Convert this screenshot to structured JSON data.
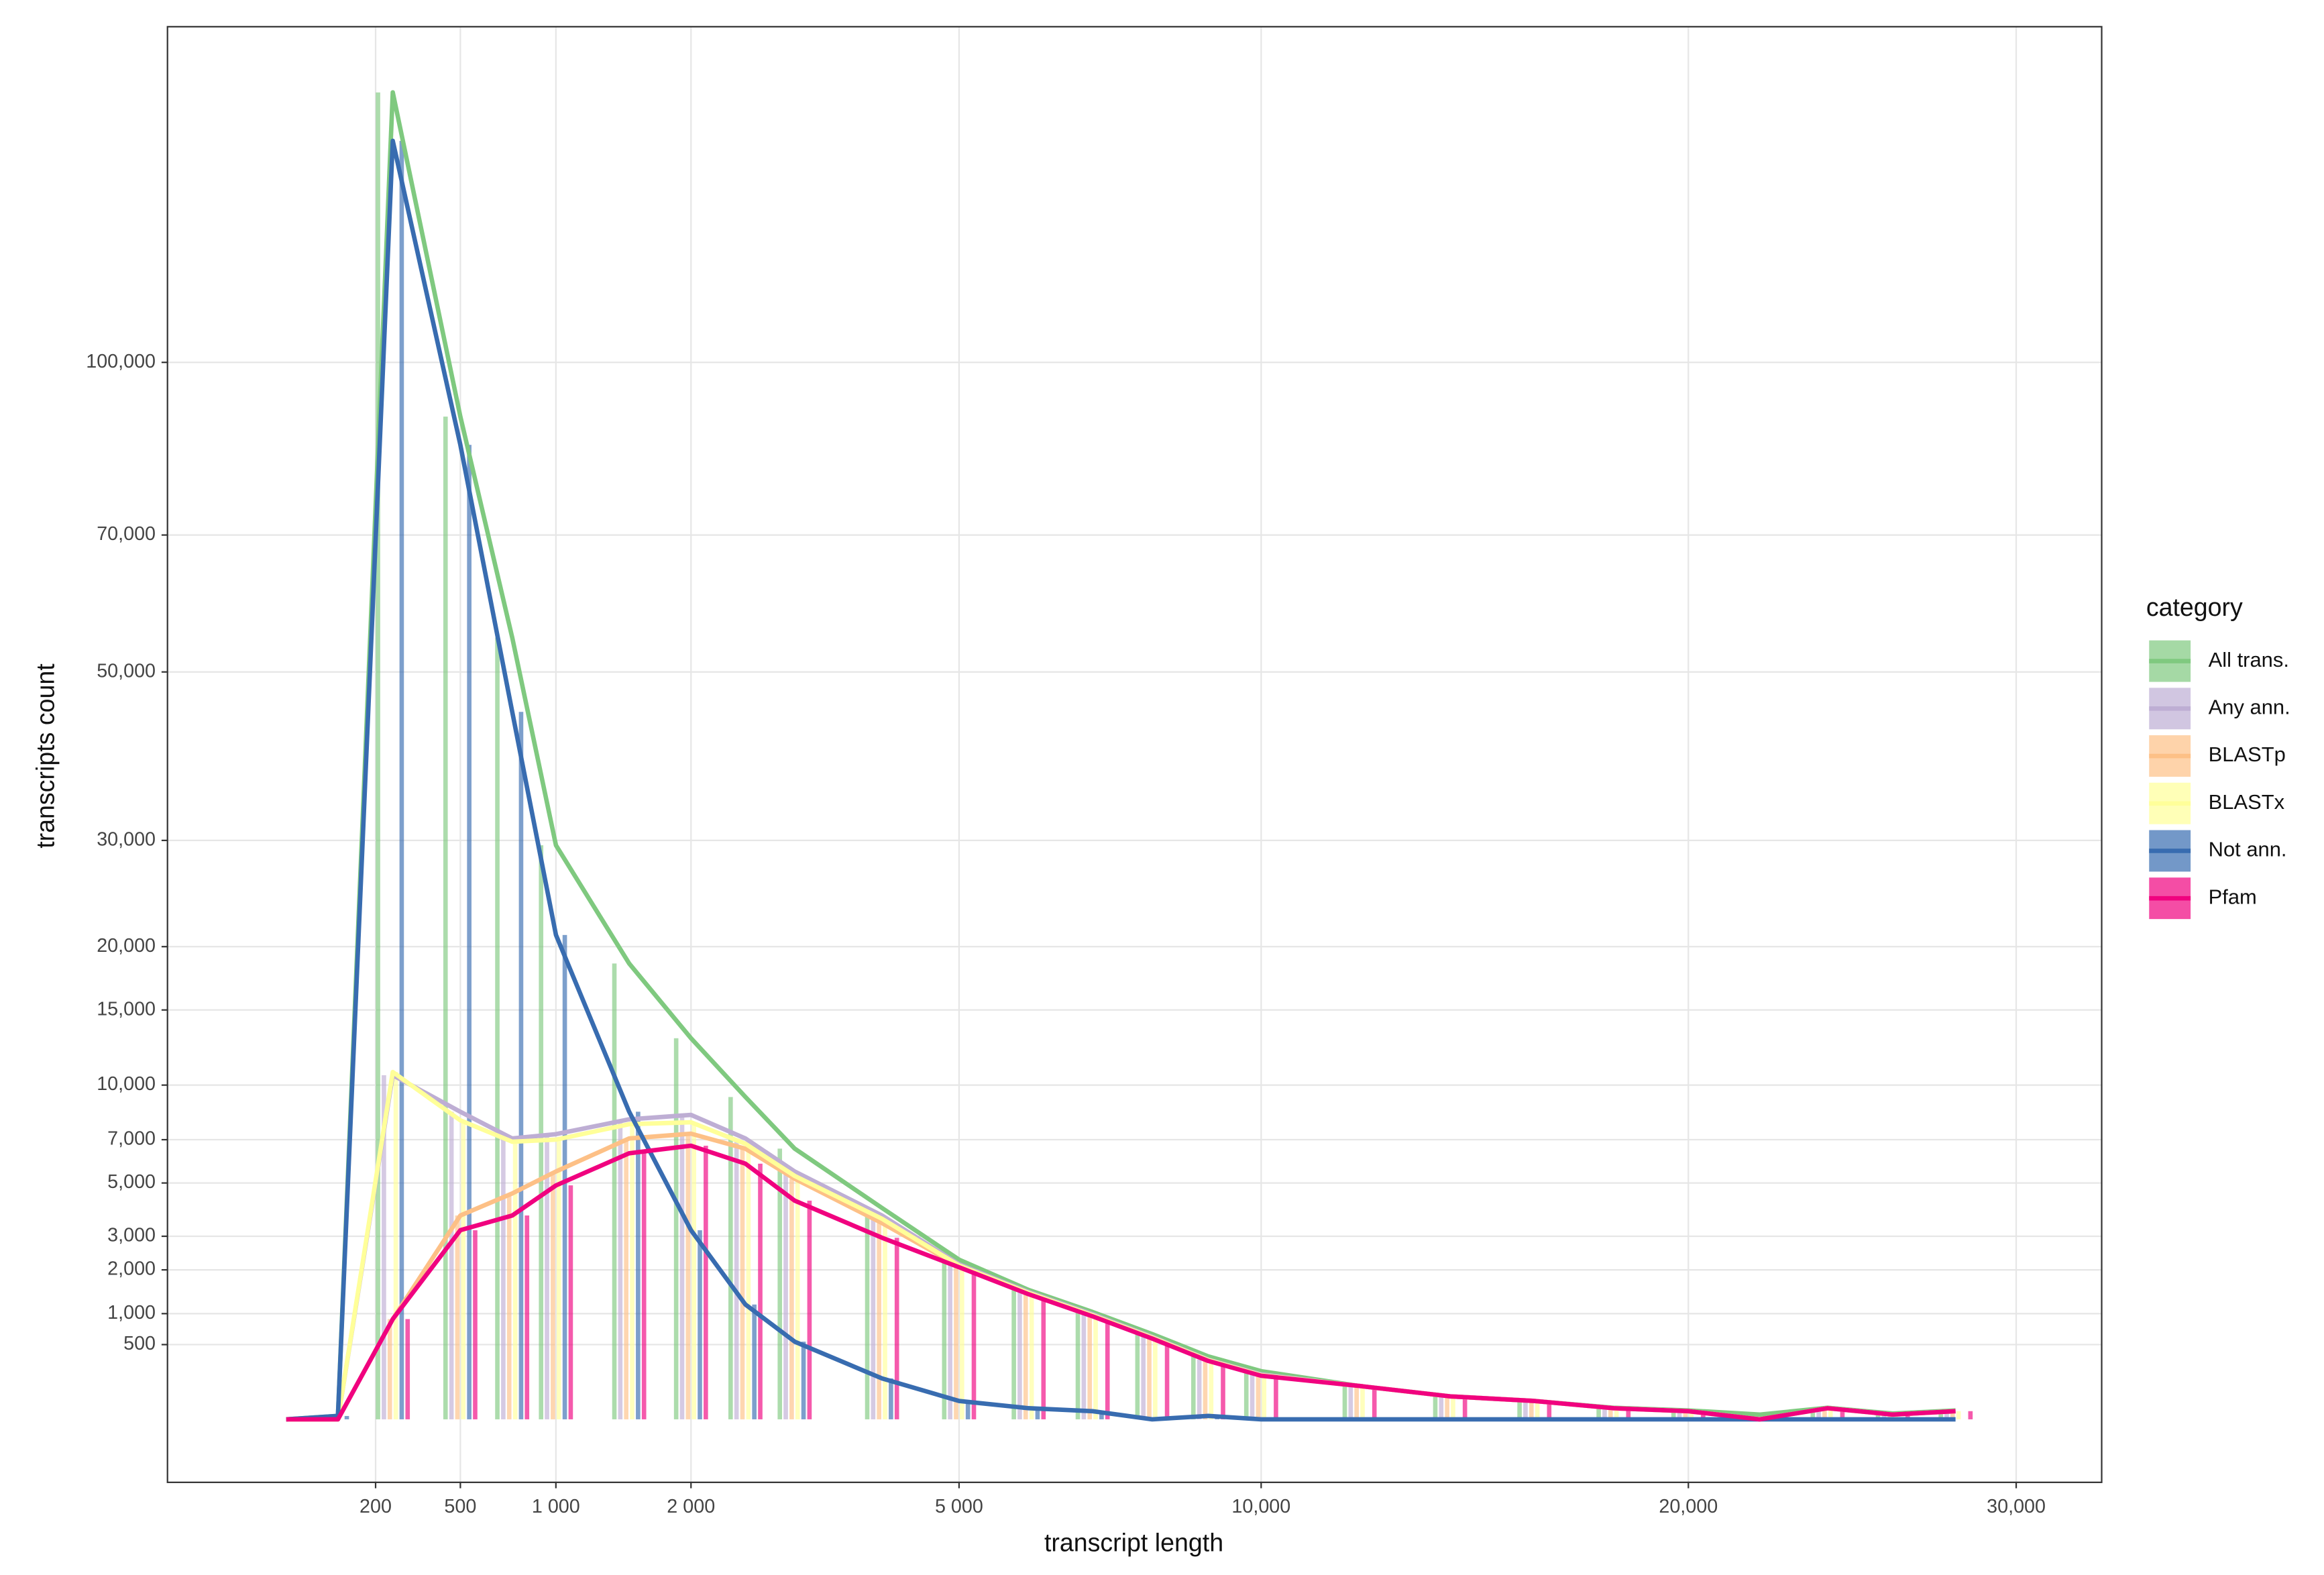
{
  "chart_data": {
    "type": "bar-line",
    "x_label": "transcript length",
    "y_label": "transcripts count",
    "x_scale": "sqrt",
    "y_scale": "sqrt",
    "grid": true,
    "legend_title": "category",
    "legend_position": "right",
    "xlim": [
      0,
      32940
    ],
    "ylim": [
      0,
      173600
    ],
    "xticks": [
      200,
      500,
      {
        "value": 1000,
        "label": "1 000"
      },
      {
        "value": 2000,
        "label": "2 000"
      },
      {
        "value": 5000,
        "label": "5 000"
      },
      {
        "value": 10000,
        "label": "10,000"
      },
      {
        "value": 20000,
        "label": "20,000"
      },
      {
        "value": 30000,
        "label": "30,000"
      }
    ],
    "yticks": [
      500,
      {
        "value": 1000,
        "label": "1,000"
      },
      {
        "value": 2000,
        "label": "2,000"
      },
      {
        "value": 3000,
        "label": "3,000"
      },
      {
        "value": 5000,
        "label": "5,000"
      },
      {
        "value": 7000,
        "label": "7,000"
      },
      {
        "value": 10000,
        "label": "10,000"
      },
      {
        "value": 15000,
        "label": "15,000"
      },
      {
        "value": 20000,
        "label": "20,000"
      },
      {
        "value": 30000,
        "label": "30,000"
      },
      {
        "value": 50000,
        "label": "50,000"
      },
      {
        "value": 70000,
        "label": "70,000"
      },
      {
        "value": 100000,
        "label": "100,000"
      }
    ],
    "x": [
      30,
      110,
      250,
      500,
      750,
      1000,
      1500,
      2000,
      2500,
      3000,
      4000,
      5000,
      6000,
      7000,
      8000,
      9000,
      10000,
      12000,
      14000,
      16000,
      18000,
      20000,
      22000,
      24000,
      26000,
      28000
    ],
    "series": [
      {
        "name": "All trans.",
        "color": "#7fc97f",
        "values": [
          0,
          1,
          157600,
          90000,
          54700,
          29500,
          18600,
          13000,
          9300,
          6560,
          4000,
          2280,
          1500,
          1030,
          650,
          355,
          208,
          100,
          47,
          30,
          12,
          7,
          2,
          12,
          3,
          7
        ]
      },
      {
        "name": "Any ann.",
        "color": "#beaed4",
        "values": [
          0,
          0,
          10600,
          8470,
          7060,
          7280,
          8060,
          8300,
          7060,
          5500,
          3720,
          2150,
          1450,
          990,
          610,
          320,
          180,
          100,
          47,
          30,
          11,
          6,
          0,
          11,
          2,
          6
        ]
      },
      {
        "name": "BLASTp",
        "color": "#fdc086",
        "values": [
          0,
          0,
          900,
          3720,
          4570,
          5500,
          7060,
          7300,
          6560,
          5180,
          3450,
          2100,
          1420,
          960,
          595,
          310,
          172,
          100,
          47,
          30,
          11,
          6,
          0,
          11,
          2,
          6
        ]
      },
      {
        "name": "BLASTx",
        "color": "#ffff99",
        "values": [
          0,
          0,
          10800,
          8000,
          6900,
          7000,
          7800,
          7900,
          6800,
          5300,
          3600,
          2120,
          1430,
          970,
          600,
          315,
          175,
          100,
          47,
          30,
          11,
          6,
          0,
          11,
          2,
          6
        ]
      },
      {
        "name": "Not ann.",
        "color": "#386cb0",
        "values": [
          0,
          1,
          146300,
          85000,
          44800,
          21000,
          8470,
          3200,
          1180,
          540,
          150,
          30,
          11,
          6,
          0,
          1,
          0,
          0,
          0,
          0,
          0,
          0,
          0,
          0,
          0,
          0
        ]
      },
      {
        "name": "Pfam",
        "color": "#f0027f",
        "values": [
          0,
          0,
          900,
          3200,
          3720,
          4900,
          6340,
          6700,
          5850,
          4280,
          2950,
          2070,
          1400,
          950,
          585,
          306,
          170,
          100,
          47,
          30,
          11,
          6,
          0,
          11,
          2,
          6
        ]
      }
    ]
  }
}
